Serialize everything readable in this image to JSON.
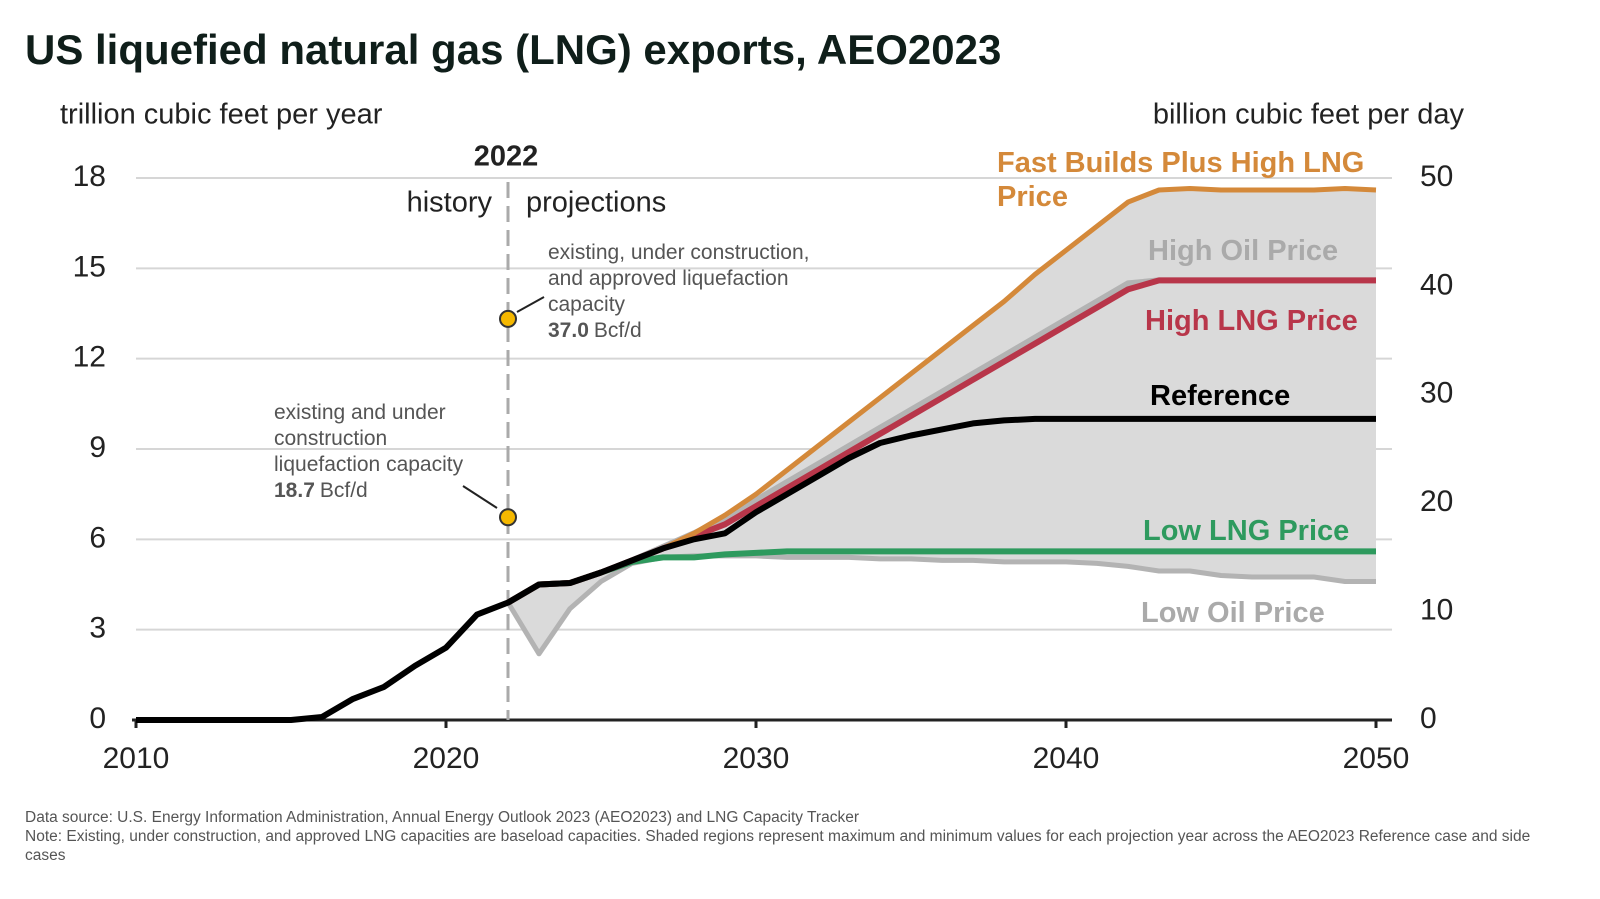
{
  "chart_data": {
    "type": "line",
    "title": "US liquefied natural gas (LNG) exports, AEO2023",
    "y_label": "trillion cubic feet per year",
    "y2_label": "billion cubic feet per day",
    "x": [
      2010,
      2011,
      2012,
      2013,
      2014,
      2015,
      2016,
      2017,
      2018,
      2019,
      2020,
      2021,
      2022,
      2023,
      2024,
      2025,
      2026,
      2027,
      2028,
      2029,
      2030,
      2031,
      2032,
      2033,
      2034,
      2035,
      2036,
      2037,
      2038,
      2039,
      2040,
      2041,
      2042,
      2043,
      2044,
      2045,
      2046,
      2047,
      2048,
      2049,
      2050
    ],
    "xlim": [
      2010,
      2050
    ],
    "xticks": [
      2010,
      2020,
      2030,
      2040,
      2050
    ],
    "ylim": [
      0,
      18
    ],
    "yticks": [
      0,
      3,
      6,
      9,
      12,
      15,
      18
    ],
    "y2lim": [
      0,
      50
    ],
    "y2ticks": [
      0,
      10,
      20,
      30,
      40,
      50
    ],
    "grid": true,
    "divider": {
      "x": 2022,
      "left_label": "history",
      "right_label": "projections"
    },
    "series": [
      {
        "name": "Low Oil Price",
        "color": "#b3b3b3",
        "values": [
          null,
          null,
          null,
          null,
          null,
          null,
          null,
          null,
          null,
          null,
          null,
          null,
          3.9,
          2.2,
          3.7,
          4.6,
          5.2,
          5.4,
          5.45,
          5.45,
          5.45,
          5.4,
          5.4,
          5.4,
          5.35,
          5.35,
          5.3,
          5.3,
          5.25,
          5.25,
          5.25,
          5.2,
          5.1,
          4.95,
          4.95,
          4.8,
          4.75,
          4.75,
          4.75,
          4.6,
          4.6
        ]
      },
      {
        "name": "High Oil Price",
        "color": "#b3b3b3",
        "values": [
          null,
          null,
          null,
          null,
          null,
          null,
          null,
          null,
          null,
          null,
          null,
          null,
          3.9,
          4.5,
          4.55,
          4.9,
          5.3,
          5.75,
          6.2,
          6.7,
          7.3,
          7.9,
          8.5,
          9.1,
          9.7,
          10.3,
          10.9,
          11.5,
          12.1,
          12.7,
          13.3,
          13.9,
          14.5,
          14.6,
          14.6,
          14.6,
          14.6,
          14.6,
          14.6,
          14.6,
          14.6
        ]
      },
      {
        "name": "Low LNG Price",
        "color": "#2e9a5e",
        "values": [
          null,
          null,
          null,
          null,
          null,
          null,
          null,
          null,
          null,
          null,
          null,
          null,
          3.9,
          4.5,
          4.55,
          4.9,
          5.25,
          5.4,
          5.4,
          5.5,
          5.55,
          5.6,
          5.6,
          5.6,
          5.6,
          5.6,
          5.6,
          5.6,
          5.6,
          5.6,
          5.6,
          5.6,
          5.6,
          5.6,
          5.6,
          5.6,
          5.6,
          5.6,
          5.6,
          5.6,
          5.6
        ]
      },
      {
        "name": "High LNG Price",
        "color": "#b8364a",
        "values": [
          null,
          null,
          null,
          null,
          null,
          null,
          null,
          null,
          null,
          null,
          null,
          null,
          3.9,
          4.5,
          4.55,
          4.9,
          5.3,
          5.7,
          6.1,
          6.5,
          7.1,
          7.7,
          8.3,
          8.9,
          9.5,
          10.1,
          10.7,
          11.3,
          11.9,
          12.5,
          13.1,
          13.7,
          14.3,
          14.6,
          14.6,
          14.6,
          14.6,
          14.6,
          14.6,
          14.6,
          14.6
        ]
      },
      {
        "name": "Fast Builds Plus High LNG Price",
        "color": "#d4893a",
        "values": [
          null,
          null,
          null,
          null,
          null,
          null,
          null,
          null,
          null,
          null,
          null,
          null,
          3.9,
          4.5,
          4.55,
          4.9,
          5.3,
          5.7,
          6.2,
          6.8,
          7.5,
          8.3,
          9.1,
          9.9,
          10.7,
          11.5,
          12.3,
          13.1,
          13.9,
          14.8,
          15.6,
          16.4,
          17.2,
          17.6,
          17.65,
          17.6,
          17.6,
          17.6,
          17.6,
          17.65,
          17.6
        ]
      },
      {
        "name": "Reference",
        "color": "#000000",
        "values": [
          0,
          0,
          0,
          0,
          0,
          0,
          0.1,
          0.7,
          1.1,
          1.8,
          2.4,
          3.5,
          3.9,
          4.5,
          4.55,
          4.9,
          5.3,
          5.7,
          6.0,
          6.2,
          6.9,
          7.5,
          8.1,
          8.7,
          9.2,
          9.45,
          9.65,
          9.85,
          9.95,
          10,
          10,
          10,
          10,
          10,
          10,
          10,
          10,
          10,
          10,
          10,
          10
        ]
      }
    ],
    "capacity": {
      "axis": "y2",
      "color": "#f5b800",
      "x": [
        2022,
        2022
      ],
      "values": [
        37.0,
        18.7
      ],
      "value_labels": [
        "37.0",
        "18.7"
      ],
      "unit": "Bcf/d",
      "notes": [
        [
          "existing, under construction,",
          "and approved liquefaction",
          "capacity"
        ],
        [
          "existing and under",
          "construction",
          "liquefaction capacity"
        ]
      ]
    },
    "footnotes": [
      "Data source: U.S. Energy Information Administration, Annual Energy Outlook 2023 (AEO2023) and LNG Capacity Tracker",
      "Note: Existing, under construction, and approved LNG capacities are baseload capacities. Shaded regions represent maximum and minimum values for each projection year across the AEO2023 Reference case and side cases"
    ]
  }
}
